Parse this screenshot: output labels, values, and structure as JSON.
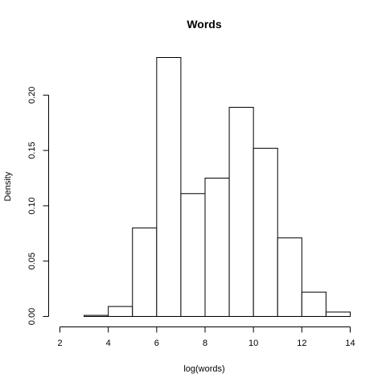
{
  "chart_data": {
    "type": "bar",
    "title": "Words",
    "xlabel": "log(words)",
    "ylabel": "Density",
    "xlim": [
      2,
      14
    ],
    "ylim": [
      0,
      0.234
    ],
    "x_ticks": [
      "2",
      "4",
      "6",
      "8",
      "10",
      "12",
      "14"
    ],
    "y_ticks": [
      "0.00",
      "0.05",
      "0.10",
      "0.15",
      "0.20"
    ],
    "bins": [
      {
        "x0": 2,
        "x1": 3,
        "value": 0.0
      },
      {
        "x0": 3,
        "x1": 4,
        "value": 0.001
      },
      {
        "x0": 4,
        "x1": 5,
        "value": 0.009
      },
      {
        "x0": 5,
        "x1": 6,
        "value": 0.08
      },
      {
        "x0": 6,
        "x1": 7,
        "value": 0.234
      },
      {
        "x0": 7,
        "x1": 8,
        "value": 0.111
      },
      {
        "x0": 8,
        "x1": 9,
        "value": 0.125
      },
      {
        "x0": 9,
        "x1": 10,
        "value": 0.189
      },
      {
        "x0": 10,
        "x1": 11,
        "value": 0.152
      },
      {
        "x0": 11,
        "x1": 12,
        "value": 0.071
      },
      {
        "x0": 12,
        "x1": 13,
        "value": 0.022
      },
      {
        "x0": 13,
        "x1": 14,
        "value": 0.004
      }
    ],
    "grid": false,
    "legend": "none"
  }
}
